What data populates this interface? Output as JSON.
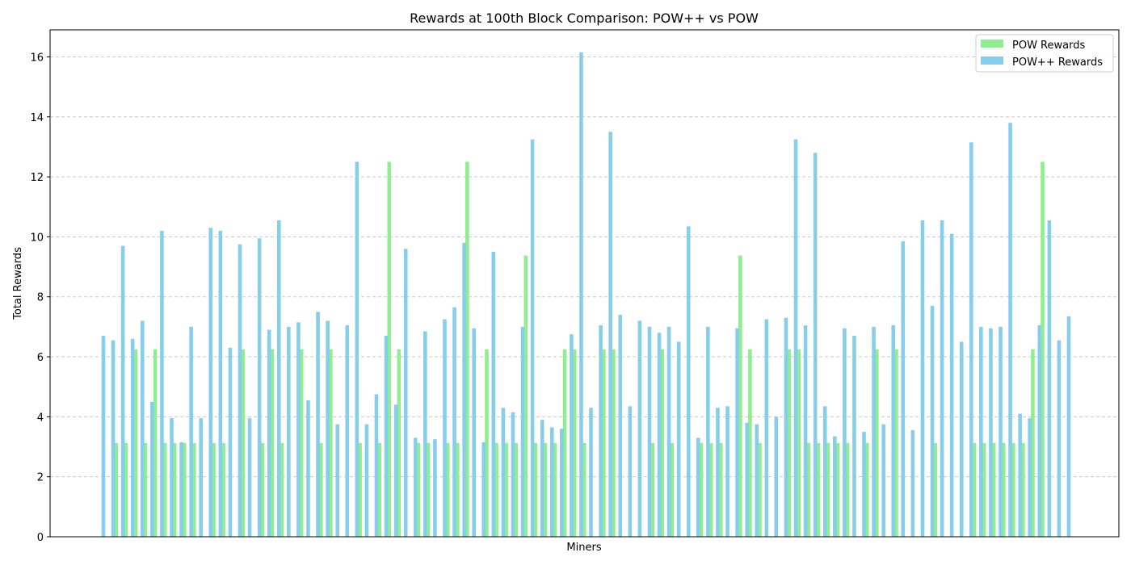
{
  "chart_data": {
    "type": "bar",
    "title": "Rewards at 100th Block Comparison: POW++ vs POW",
    "xlabel": "Miners",
    "ylabel": "Total Rewards",
    "ylim": [
      0,
      16.9
    ],
    "yticks": [
      "0",
      "2",
      "4",
      "6",
      "8",
      "10",
      "12",
      "14",
      "16"
    ],
    "grid": "y, dashed",
    "legend_position": "top-right",
    "colors": {
      "pow": "#90ee90",
      "powpp": "#87ceeb",
      "grid": "#c8c8c8"
    },
    "series": [
      {
        "name": "POW Rewards",
        "values": [
          0,
          3.125,
          3.125,
          6.25,
          3.125,
          6.25,
          3.125,
          3.125,
          3.125,
          3.125,
          0,
          3.125,
          3.125,
          0,
          6.25,
          0,
          3.125,
          6.25,
          3.125,
          0,
          6.25,
          0,
          3.125,
          6.25,
          0,
          0,
          3.125,
          0,
          3.125,
          12.5,
          6.25,
          0,
          3.125,
          3.125,
          0,
          3.125,
          3.125,
          12.5,
          0,
          6.25,
          3.125,
          3.125,
          3.125,
          9.375,
          3.125,
          3.125,
          3.125,
          6.25,
          6.25,
          3.125,
          0,
          6.25,
          6.25,
          0,
          0,
          0,
          3.125,
          6.25,
          3.125,
          0,
          0,
          3.125,
          3.125,
          3.125,
          0,
          9.375,
          6.25,
          3.125,
          0,
          0,
          6.25,
          6.25,
          3.125,
          3.125,
          3.125,
          3.125,
          3.125,
          0,
          3.125,
          6.25,
          0,
          6.25,
          0,
          0,
          0,
          3.125,
          0,
          0,
          0,
          3.125,
          3.125,
          3.125,
          3.125,
          3.125,
          3.125,
          6.25,
          12.5,
          0,
          0
        ]
      },
      {
        "name": "POW++ Rewards",
        "values": [
          6.7,
          6.55,
          9.7,
          6.6,
          7.2,
          4.5,
          10.2,
          3.95,
          3.15,
          7.0,
          3.95,
          10.3,
          10.2,
          6.3,
          9.75,
          3.95,
          9.95,
          6.9,
          10.55,
          7.0,
          7.15,
          4.55,
          7.5,
          7.2,
          3.75,
          7.05,
          12.5,
          3.75,
          4.75,
          6.7,
          4.4,
          9.6,
          3.3,
          6.85,
          3.25,
          7.25,
          7.65,
          9.8,
          6.95,
          3.15,
          9.5,
          4.3,
          4.15,
          7.0,
          13.25,
          3.9,
          3.65,
          3.6,
          6.75,
          16.15,
          4.3,
          7.05,
          13.5,
          7.4,
          4.35,
          7.2,
          7.0,
          6.8,
          7.0,
          6.5,
          10.35,
          3.3,
          7.0,
          4.3,
          4.35,
          6.95,
          3.8,
          3.75,
          7.25,
          4.0,
          7.3,
          13.25,
          7.05,
          12.8,
          4.35,
          3.35,
          6.95,
          6.7,
          3.5,
          7.0,
          3.75,
          7.05,
          9.85,
          3.55,
          10.55,
          7.7,
          10.55,
          10.1,
          6.5,
          13.15,
          7.0,
          6.95,
          7.0,
          13.8,
          4.1,
          3.95,
          7.05,
          10.55,
          6.55,
          7.35
        ]
      }
    ]
  }
}
